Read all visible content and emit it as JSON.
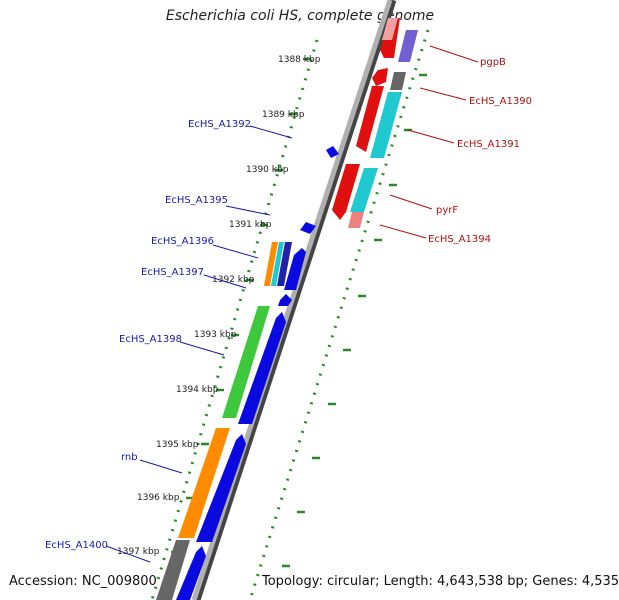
{
  "title": "Escherichia coli HS, complete genome",
  "footer": {
    "accession_label": "Accession:",
    "accession": "NC_009800",
    "topology": "Topology: circular; Length: 4,643,538 bp; Genes: 4,535"
  },
  "kbp_ticks": [
    "1388 kbp",
    "1389 kbp",
    "1390 kbp",
    "1391 kbp",
    "1392 kbp",
    "1393 kbp",
    "1394 kbp",
    "1395 kbp",
    "1396 kbp",
    "1397 kbp"
  ],
  "gene_labels_left": [
    "EcHS_A1392",
    "EcHS_A1395",
    "EcHS_A1396",
    "EcHS_A1397",
    "EcHS_A1398",
    "rnb",
    "EcHS_A1400"
  ],
  "gene_labels_right": [
    "pgpB",
    "EcHS_A1390",
    "EcHS_A1391",
    "pyrF",
    "EcHS_A1394"
  ],
  "colors": {
    "backbone": "#8a8a8a",
    "forward_cds": "#0a0ae0",
    "reverse_cds": "#e01010",
    "green": "#3ec83e",
    "orange": "#ff8c00",
    "cyan": "#20c8d0",
    "gray": "#707070",
    "purple": "#7060d0",
    "pink": "#ef8080",
    "tick": "#2a8a2a"
  }
}
